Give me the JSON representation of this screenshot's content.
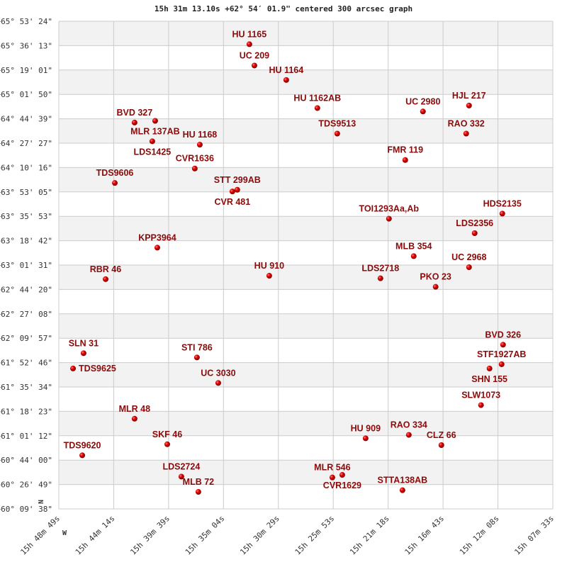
{
  "chart_data": {
    "type": "scatter",
    "title": "15h 31m 13.10s +62° 54′ 01.9\" centered 300 arcsec graph",
    "x_axis": {
      "quantity": "right ascension (minutes past 15h)",
      "range": [
        48.817,
        7.55
      ],
      "tick_labels": [
        "15h 48m 49s",
        "15h 44m 14s",
        "15h 39m 39s",
        "15h 35m 04s",
        "15h 30m 29s",
        "15h 25m 53s",
        "15h 21m 18s",
        "15h 16m 43s",
        "15h 12m 08s",
        "15h 07m 33s"
      ],
      "direction_label": "W"
    },
    "y_axis": {
      "quantity": "declination (degrees)",
      "range": [
        60.1606,
        65.89
      ],
      "tick_labels": [
        "+65° 53' 24\"",
        "+65° 36' 13\"",
        "+65° 19' 01\"",
        "+65° 01' 50\"",
        "+64° 44' 39\"",
        "+64° 27' 27\"",
        "+64° 10' 16\"",
        "+63° 53' 05\"",
        "+63° 35' 53\"",
        "+63° 18' 42\"",
        "+63° 01' 31\"",
        "+62° 44' 20\"",
        "+62° 27' 08\"",
        "+62° 09' 57\"",
        "+61° 52' 46\"",
        "+61° 35' 34\"",
        "+61° 18' 23\"",
        "+61° 01' 12\"",
        "+60° 44' 00\"",
        "+60° 26' 49\"",
        "+60° 09' 38\""
      ],
      "direction_label": "N"
    },
    "grid": true,
    "colors": {
      "marker": "#dd0000",
      "label": "#8b0a0a",
      "band": "#f2f2f2",
      "grid": "#cccccc"
    },
    "points": [
      {
        "name": "HU 1165",
        "ra": 32.9,
        "dec": 65.62
      },
      {
        "name": "UC  209",
        "ra": 32.48,
        "dec": 65.37
      },
      {
        "name": "HU 1164",
        "ra": 29.82,
        "dec": 65.2
      },
      {
        "name": "HU 1162AB",
        "ra": 27.22,
        "dec": 64.87
      },
      {
        "name": "UC 2980",
        "ra": 18.4,
        "dec": 64.83
      },
      {
        "name": "HJL 217",
        "ra": 14.55,
        "dec": 64.9
      },
      {
        "name": "RAO 332",
        "ra": 14.79,
        "dec": 64.57
      },
      {
        "name": "TDS9513",
        "ra": 25.56,
        "dec": 64.57
      },
      {
        "name": "BVD 327",
        "ra": 42.49,
        "dec": 64.7
      },
      {
        "name": "MLR 137AB",
        "ra": 40.77,
        "dec": 64.72
      },
      {
        "name": "LDS1425",
        "ra": 41.01,
        "dec": 64.48
      },
      {
        "name": "HU 1168",
        "ra": 37.04,
        "dec": 64.44
      },
      {
        "name": "CVR1636",
        "ra": 37.46,
        "dec": 64.16
      },
      {
        "name": "FMR 119",
        "ra": 19.88,
        "dec": 64.26
      },
      {
        "name": "TDS9606",
        "ra": 44.14,
        "dec": 63.99
      },
      {
        "name": "STT 299AB",
        "ra": 33.91,
        "dec": 63.91
      },
      {
        "name": "CVR 481",
        "ra": 34.32,
        "dec": 63.89
      },
      {
        "name": "HDS2135",
        "ra": 11.77,
        "dec": 63.63
      },
      {
        "name": "TOI1293Aa,Ab",
        "ra": 21.24,
        "dec": 63.57
      },
      {
        "name": "LDS2356",
        "ra": 14.08,
        "dec": 63.4
      },
      {
        "name": "KPP3964",
        "ra": 40.59,
        "dec": 63.23
      },
      {
        "name": "MLB 354",
        "ra": 19.17,
        "dec": 63.13
      },
      {
        "name": "UC 2968",
        "ra": 14.55,
        "dec": 63.0
      },
      {
        "name": "RBR  46",
        "ra": 44.91,
        "dec": 62.86
      },
      {
        "name": "HU  910",
        "ra": 31.24,
        "dec": 62.9
      },
      {
        "name": "LDS2718",
        "ra": 21.95,
        "dec": 62.87
      },
      {
        "name": "PKO  23",
        "ra": 17.34,
        "dec": 62.77
      },
      {
        "name": "BVD 326",
        "ra": 11.71,
        "dec": 62.09
      },
      {
        "name": "SLN  31",
        "ra": 46.75,
        "dec": 61.99
      },
      {
        "name": "STI 786",
        "ra": 37.28,
        "dec": 61.94
      },
      {
        "name": "STF1927AB",
        "ra": 11.83,
        "dec": 61.86
      },
      {
        "name": "SHN 155",
        "ra": 12.84,
        "dec": 61.81
      },
      {
        "name": "TDS9625",
        "ra": 47.63,
        "dec": 61.81
      },
      {
        "name": "UC 3030",
        "ra": 35.5,
        "dec": 61.64
      },
      {
        "name": "SLW1073",
        "ra": 13.55,
        "dec": 61.38
      },
      {
        "name": "MLR  48",
        "ra": 42.49,
        "dec": 61.22
      },
      {
        "name": "SKF  46",
        "ra": 39.76,
        "dec": 60.92
      },
      {
        "name": "HU  909",
        "ra": 23.19,
        "dec": 60.99
      },
      {
        "name": "RAO 334",
        "ra": 19.58,
        "dec": 61.03
      },
      {
        "name": "CLZ  66",
        "ra": 16.86,
        "dec": 60.91
      },
      {
        "name": "TDS9620",
        "ra": 46.86,
        "dec": 60.79
      },
      {
        "name": "LDS2724",
        "ra": 38.58,
        "dec": 60.54
      },
      {
        "name": "MLB  72",
        "ra": 37.16,
        "dec": 60.36
      },
      {
        "name": "MLR 546",
        "ra": 25.97,
        "dec": 60.53
      },
      {
        "name": "CVR1629",
        "ra": 25.14,
        "dec": 60.56
      },
      {
        "name": "STTA138AB",
        "ra": 20.11,
        "dec": 60.38
      }
    ]
  }
}
